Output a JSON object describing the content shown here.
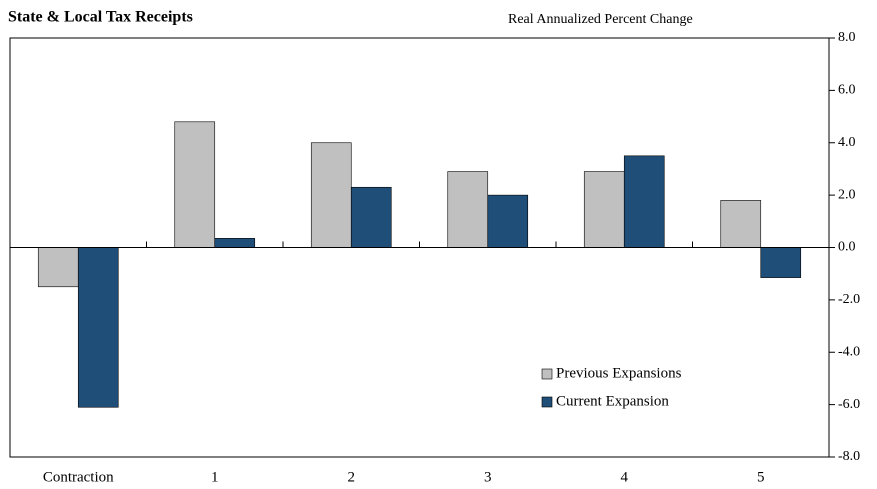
{
  "chart_data": {
    "type": "bar",
    "title": "State & Local Tax Receipts",
    "subtitle": "Real Annualized Percent Change",
    "categories": [
      "Contraction",
      "1",
      "2",
      "3",
      "4",
      "5"
    ],
    "series": [
      {
        "name": "Previous Expansions",
        "color": "#c0c0c0",
        "values": [
          -1.5,
          4.8,
          4.0,
          2.9,
          2.9,
          1.8
        ]
      },
      {
        "name": "Current Expansion",
        "color": "#1f4e79",
        "values": [
          -6.1,
          0.35,
          2.3,
          2.0,
          3.5,
          -1.15
        ]
      }
    ],
    "ylim": [
      -8,
      8
    ],
    "yticks": [
      {
        "value": -8,
        "label": "-8.0"
      },
      {
        "value": -6,
        "label": "-6.0"
      },
      {
        "value": -4,
        "label": "-4.0"
      },
      {
        "value": -2,
        "label": "-2.0"
      },
      {
        "value": 0,
        "label": "0.0"
      },
      {
        "value": 2,
        "label": "2.0"
      },
      {
        "value": 4,
        "label": "4.0"
      },
      {
        "value": 6,
        "label": "6.0"
      },
      {
        "value": 8,
        "label": "8.0"
      }
    ],
    "y_axis_side": "right",
    "grid": false,
    "legend": "lower right"
  }
}
